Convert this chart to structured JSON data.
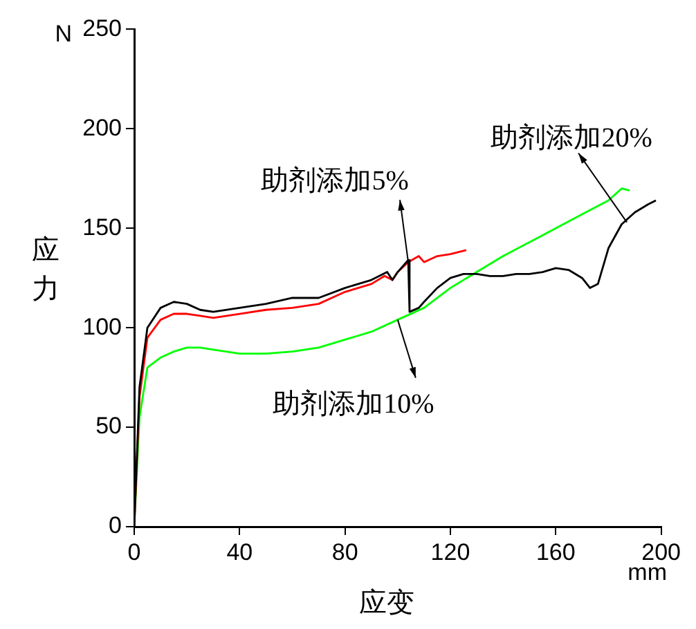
{
  "chart_data": {
    "type": "line",
    "xlabel": "应变",
    "ylabel": "应力",
    "xlim": [
      0,
      200
    ],
    "ylim": [
      0,
      250
    ],
    "xticks": [
      0,
      40,
      80,
      120,
      160,
      200
    ],
    "yticks": [
      0,
      50,
      100,
      150,
      200,
      250
    ],
    "grid": false,
    "legend": false,
    "marker": "none",
    "line_style": "solid",
    "series": [
      {
        "color": "#000000",
        "x": [
          0,
          2,
          5,
          10,
          15,
          20,
          25,
          30,
          40,
          50,
          60,
          70,
          80,
          90,
          96,
          98,
          100,
          104,
          104.5,
          108,
          110,
          115,
          120,
          125,
          130,
          135,
          140,
          145,
          150,
          155,
          160,
          165,
          170,
          173,
          176,
          180,
          185,
          190,
          195,
          198
        ],
        "values": [
          0,
          70,
          100,
          110,
          113,
          112,
          109,
          108,
          110,
          112,
          115,
          115,
          120,
          124,
          128,
          124,
          128,
          134,
          108,
          110,
          113,
          120,
          125,
          127,
          127,
          126,
          126,
          127,
          127,
          128,
          130,
          129,
          125,
          120,
          122,
          140,
          152,
          158,
          162,
          164
        ]
      },
      {
        "color": "#ff0000",
        "x": [
          0,
          2,
          5,
          10,
          15,
          20,
          25,
          30,
          40,
          50,
          60,
          70,
          80,
          90,
          95,
          98,
          100,
          104,
          108,
          110,
          115,
          120,
          126
        ],
        "values": [
          0,
          65,
          95,
          104,
          107,
          107,
          106,
          105,
          107,
          109,
          110,
          112,
          118,
          122,
          126,
          124,
          128,
          133,
          136,
          133,
          136,
          137,
          139
        ]
      },
      {
        "color": "#00ff00",
        "x": [
          0,
          2,
          5,
          10,
          15,
          20,
          25,
          30,
          40,
          50,
          60,
          70,
          80,
          90,
          100,
          110,
          120,
          130,
          140,
          150,
          160,
          170,
          180,
          185,
          188
        ],
        "values": [
          0,
          55,
          80,
          85,
          88,
          90,
          90,
          89,
          87,
          87,
          88,
          90,
          94,
          98,
          104,
          110,
          120,
          128,
          136,
          143,
          150,
          157,
          164,
          170,
          169
        ]
      }
    ],
    "annotations": [
      {
        "text": "N"
      },
      {
        "text": "mm"
      },
      {
        "text": "助剂添加5%",
        "x": 104,
        "y": 133
      },
      {
        "text": "助剂添加10%",
        "x": 100,
        "y": 104
      },
      {
        "text": "助剂添加20%",
        "x": 187,
        "y": 153
      }
    ]
  }
}
